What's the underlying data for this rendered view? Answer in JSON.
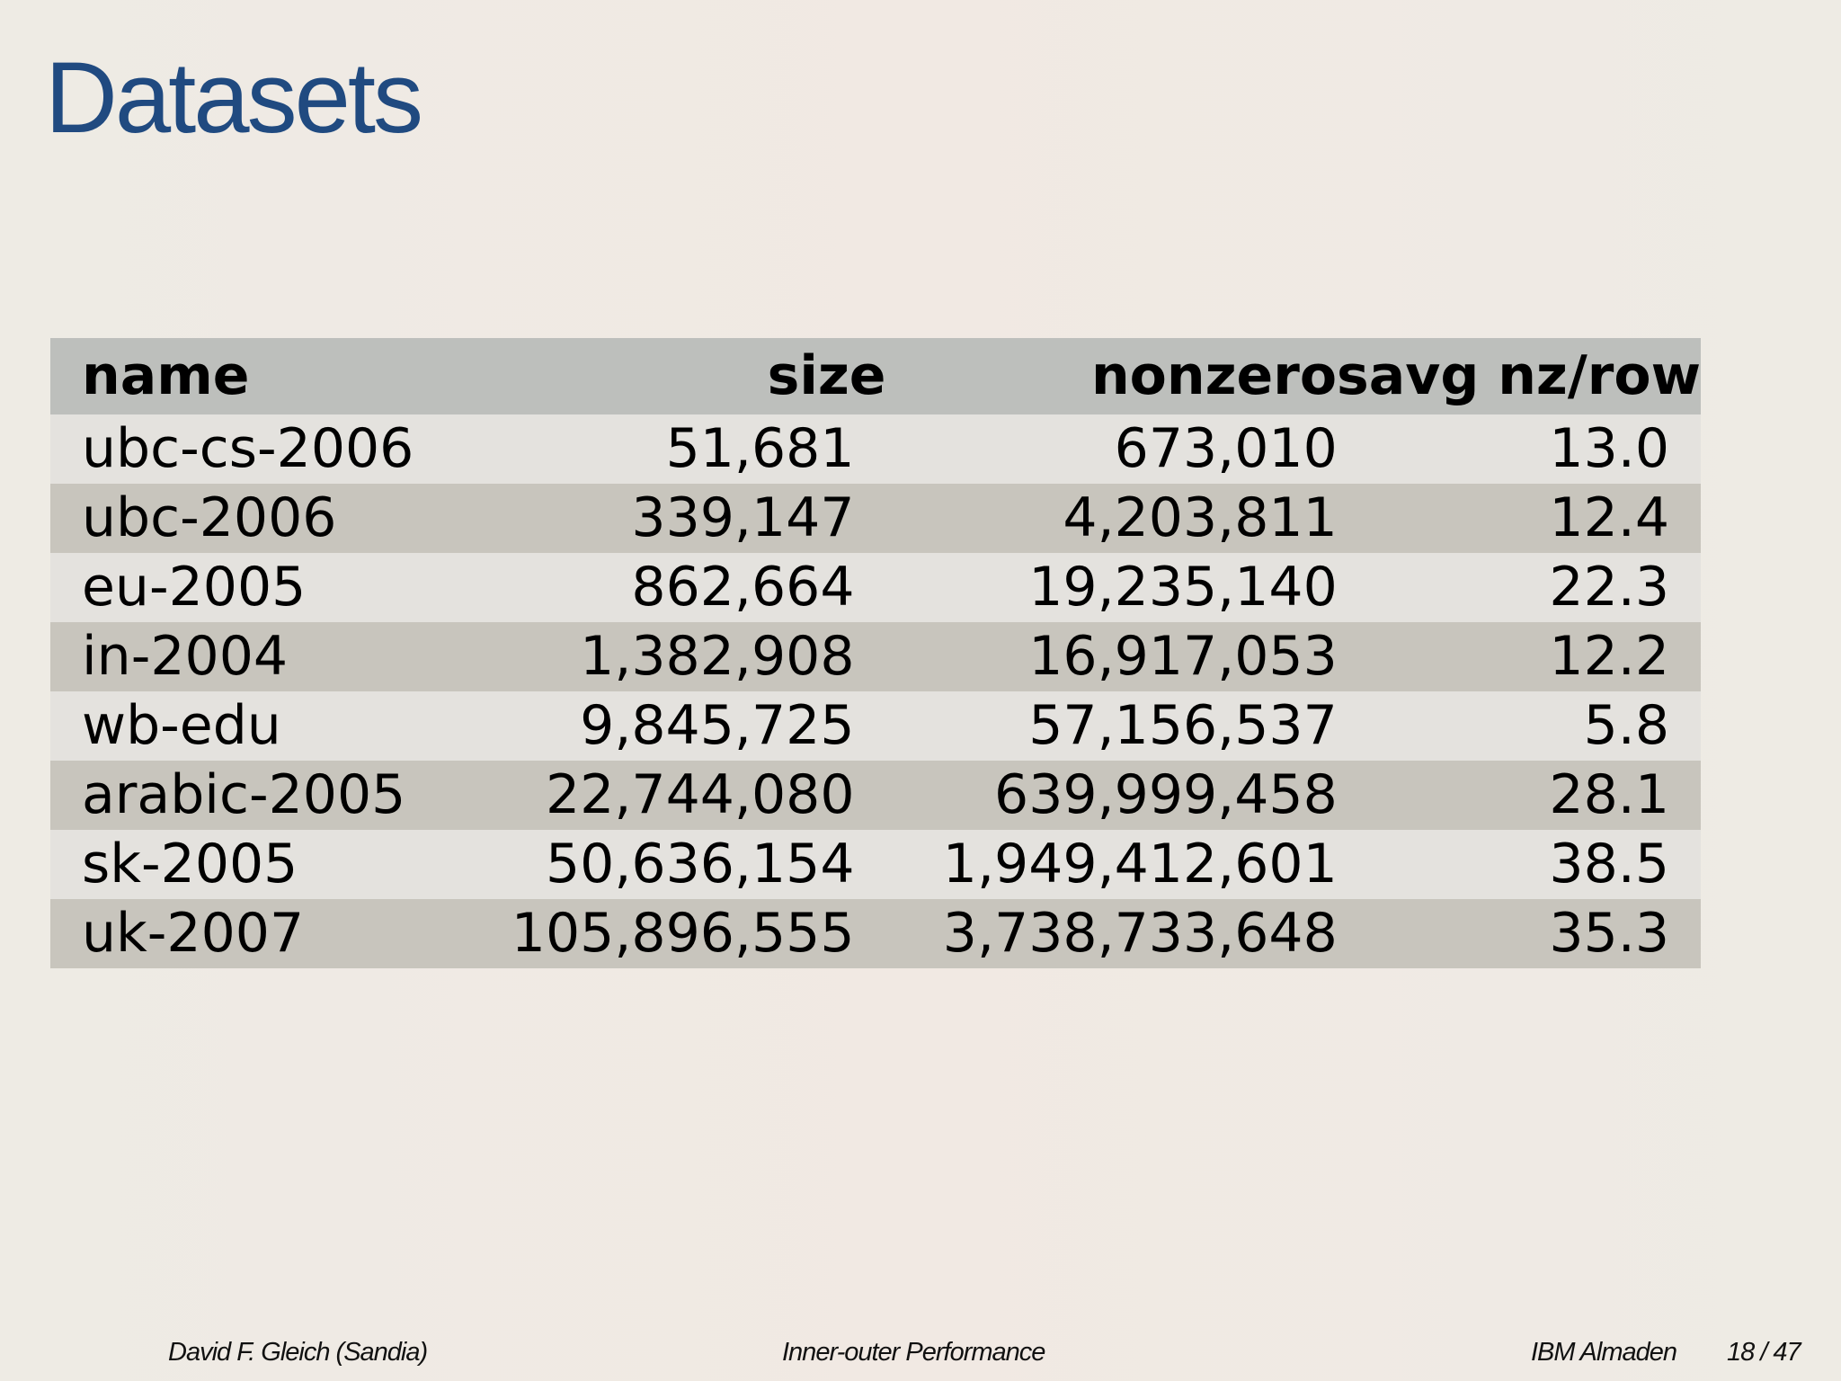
{
  "slide": {
    "title": "Datasets",
    "colors": {
      "title": "#204a80",
      "header_bg": "#bdbfbc",
      "row_light": "#e4e2de",
      "row_dark": "#c8c5bd",
      "background": "#eeebe4"
    }
  },
  "table": {
    "headers": [
      "name",
      "size",
      "nonzeros",
      "avg nz/row"
    ],
    "rows": [
      [
        "ubc-cs-2006",
        "51,681",
        "673,010",
        "13.0"
      ],
      [
        "ubc-2006",
        "339,147",
        "4,203,811",
        "12.4"
      ],
      [
        "eu-2005",
        "862,664",
        "19,235,140",
        "22.3"
      ],
      [
        "in-2004",
        "1,382,908",
        "16,917,053",
        "12.2"
      ],
      [
        "wb-edu",
        "9,845,725",
        "57,156,537",
        "5.8"
      ],
      [
        "arabic-2005",
        "22,744,080",
        "639,999,458",
        "28.1"
      ],
      [
        "sk-2005",
        "50,636,154",
        "1,949,412,601",
        "38.5"
      ],
      [
        "uk-2007",
        "105,896,555",
        "3,738,733,648",
        "35.3"
      ]
    ]
  },
  "footer": {
    "author": "David F. Gleich  (Sandia)",
    "talk_title": "Inner-outer Performance",
    "venue": "IBM Almaden",
    "page": "18 / 47"
  }
}
